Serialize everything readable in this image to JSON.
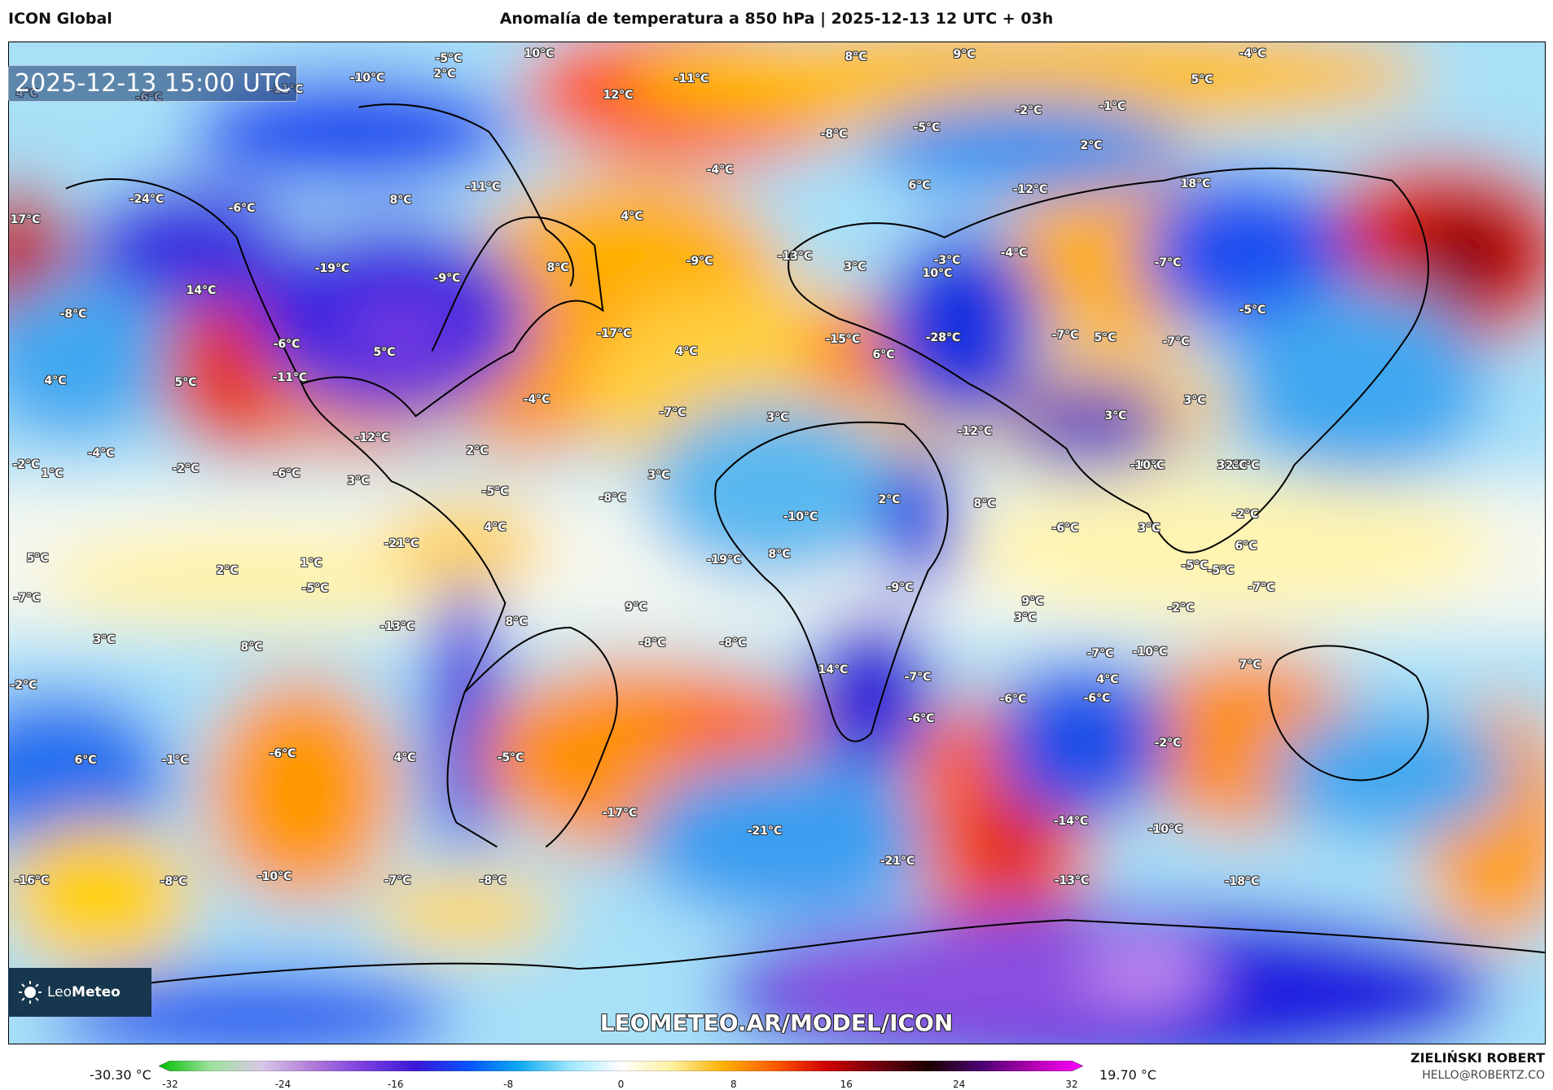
{
  "header": {
    "model": "ICON Global",
    "title": "Anomalía de temperatura a 850 hPa | 2025-12-13 12 UTC + 03h"
  },
  "map": {
    "valid_time": "2025-12-13 15:00 UTC",
    "site_url": "LEOMETEO.AR/MODEL/ICON",
    "logo_text_light": "Leo",
    "logo_text_bold": "Meteo",
    "labels": [
      {
        "text": "-5°C"
      },
      {
        "text": "10°C"
      },
      {
        "text": "8°C"
      },
      {
        "text": "9°C"
      },
      {
        "text": "-4°C"
      },
      {
        "text": "2°C"
      },
      {
        "text": "-10°C"
      },
      {
        "text": "-11°C"
      },
      {
        "text": "-11°C"
      },
      {
        "text": "12°C"
      },
      {
        "text": "5°C"
      },
      {
        "text": "4°C"
      },
      {
        "text": "-6°C"
      },
      {
        "text": "-2°C"
      },
      {
        "text": "-1°C"
      },
      {
        "text": "-8°C"
      },
      {
        "text": "-5°C"
      },
      {
        "text": "2°C"
      },
      {
        "text": "-11°C"
      },
      {
        "text": "-4°C"
      },
      {
        "text": "-24°C"
      },
      {
        "text": "-6°C"
      },
      {
        "text": "8°C"
      },
      {
        "text": "6°C"
      },
      {
        "text": "-12°C"
      },
      {
        "text": "18°C"
      },
      {
        "text": "17°C"
      },
      {
        "text": "4°C"
      },
      {
        "text": "-19°C"
      },
      {
        "text": "-9°C"
      },
      {
        "text": "8°C"
      },
      {
        "text": "-9°C"
      },
      {
        "text": "-13°C"
      },
      {
        "text": "3°C"
      },
      {
        "text": "-3°C"
      },
      {
        "text": "-4°C"
      },
      {
        "text": "-7°C"
      },
      {
        "text": "14°C"
      },
      {
        "text": "10°C"
      },
      {
        "text": "-5°C"
      },
      {
        "text": "-8°C"
      },
      {
        "text": "-6°C"
      },
      {
        "text": "-17°C"
      },
      {
        "text": "4°C"
      },
      {
        "text": "-15°C"
      },
      {
        "text": "-28°C"
      },
      {
        "text": "-7°C"
      },
      {
        "text": "5°C"
      },
      {
        "text": "-7°C"
      },
      {
        "text": "5°C"
      },
      {
        "text": "6°C"
      },
      {
        "text": "4°C"
      },
      {
        "text": "-11°C"
      },
      {
        "text": "5°C"
      },
      {
        "text": "3°C"
      },
      {
        "text": "-4°C"
      },
      {
        "text": "3°C"
      },
      {
        "text": "-7°C"
      },
      {
        "text": "-12°C"
      },
      {
        "text": "3°C"
      },
      {
        "text": "-12°C"
      },
      {
        "text": "2°C"
      },
      {
        "text": "-6°C"
      },
      {
        "text": "-4°C"
      },
      {
        "text": "-2°C"
      },
      {
        "text": "1°C"
      },
      {
        "text": "-2°C"
      },
      {
        "text": "-6°C"
      },
      {
        "text": "3°C"
      },
      {
        "text": "3°C"
      },
      {
        "text": "3°C"
      },
      {
        "text": "-10°C"
      },
      {
        "text": "-2°C"
      },
      {
        "text": "2°C"
      },
      {
        "text": "-5°C"
      },
      {
        "text": "-8°C"
      },
      {
        "text": "2°C"
      },
      {
        "text": "-10°C"
      },
      {
        "text": "8°C"
      },
      {
        "text": "3°C"
      },
      {
        "text": "4°C"
      },
      {
        "text": "-6°C"
      },
      {
        "text": "3°C"
      },
      {
        "text": "5°C"
      },
      {
        "text": "-21°C"
      },
      {
        "text": "-19°C"
      },
      {
        "text": "8°C"
      },
      {
        "text": "1°C"
      },
      {
        "text": "2°C"
      },
      {
        "text": "6°C"
      },
      {
        "text": "-5°C"
      },
      {
        "text": "-5°C"
      },
      {
        "text": "-7°C"
      },
      {
        "text": "-7°C"
      },
      {
        "text": "3°C"
      },
      {
        "text": "-9°C"
      },
      {
        "text": "9°C"
      },
      {
        "text": "-5°C"
      },
      {
        "text": "9°C"
      },
      {
        "text": "8°C"
      },
      {
        "text": "-13°C"
      },
      {
        "text": "-8°C"
      },
      {
        "text": "3°C"
      },
      {
        "text": "8°C"
      },
      {
        "text": "-2°C"
      },
      {
        "text": "-10°C"
      },
      {
        "text": "-8°C"
      },
      {
        "text": "-7°C"
      },
      {
        "text": "7°C"
      },
      {
        "text": "4°C"
      },
      {
        "text": "-2°C"
      },
      {
        "text": "-7°C"
      },
      {
        "text": "14°C"
      },
      {
        "text": "-6°C"
      },
      {
        "text": "-6°C"
      },
      {
        "text": "-1°C"
      },
      {
        "text": "-6°C"
      },
      {
        "text": "6°C"
      },
      {
        "text": "4°C"
      },
      {
        "text": "-6°C"
      },
      {
        "text": "-2°C"
      },
      {
        "text": "-5°C"
      },
      {
        "text": "-17°C"
      },
      {
        "text": "-21°C"
      },
      {
        "text": "-14°C"
      },
      {
        "text": "-10°C"
      },
      {
        "text": "-21°C"
      },
      {
        "text": "-16°C"
      },
      {
        "text": "-8°C"
      },
      {
        "text": "-10°C"
      },
      {
        "text": "-7°C"
      },
      {
        "text": "-8°C"
      },
      {
        "text": "-13°C"
      },
      {
        "text": "-18°C"
      }
    ]
  },
  "colorbar": {
    "min_label": "-30.30 °C",
    "max_label": "19.70 °C",
    "ticks": [
      "-32",
      "-24",
      "-16",
      "-8",
      "0",
      "8",
      "16",
      "24",
      "32"
    ],
    "range": [
      -32,
      32
    ],
    "stops": [
      "#00c000",
      "#9de29d",
      "#d8c8e8",
      "#b07ad8",
      "#7a3ee0",
      "#3a18d8",
      "#0a50ff",
      "#0aa8f0",
      "#9ee6ff",
      "#ffffff",
      "#fff1a0",
      "#ffb000",
      "#ff5a00",
      "#d00000",
      "#700010",
      "#1a0000",
      "#4a0070",
      "#b000b0",
      "#ff00ff"
    ]
  },
  "credits": {
    "author": "ZIELIŃSKI ROBERT",
    "email": "HELLO@ROBERTZ.CO"
  }
}
